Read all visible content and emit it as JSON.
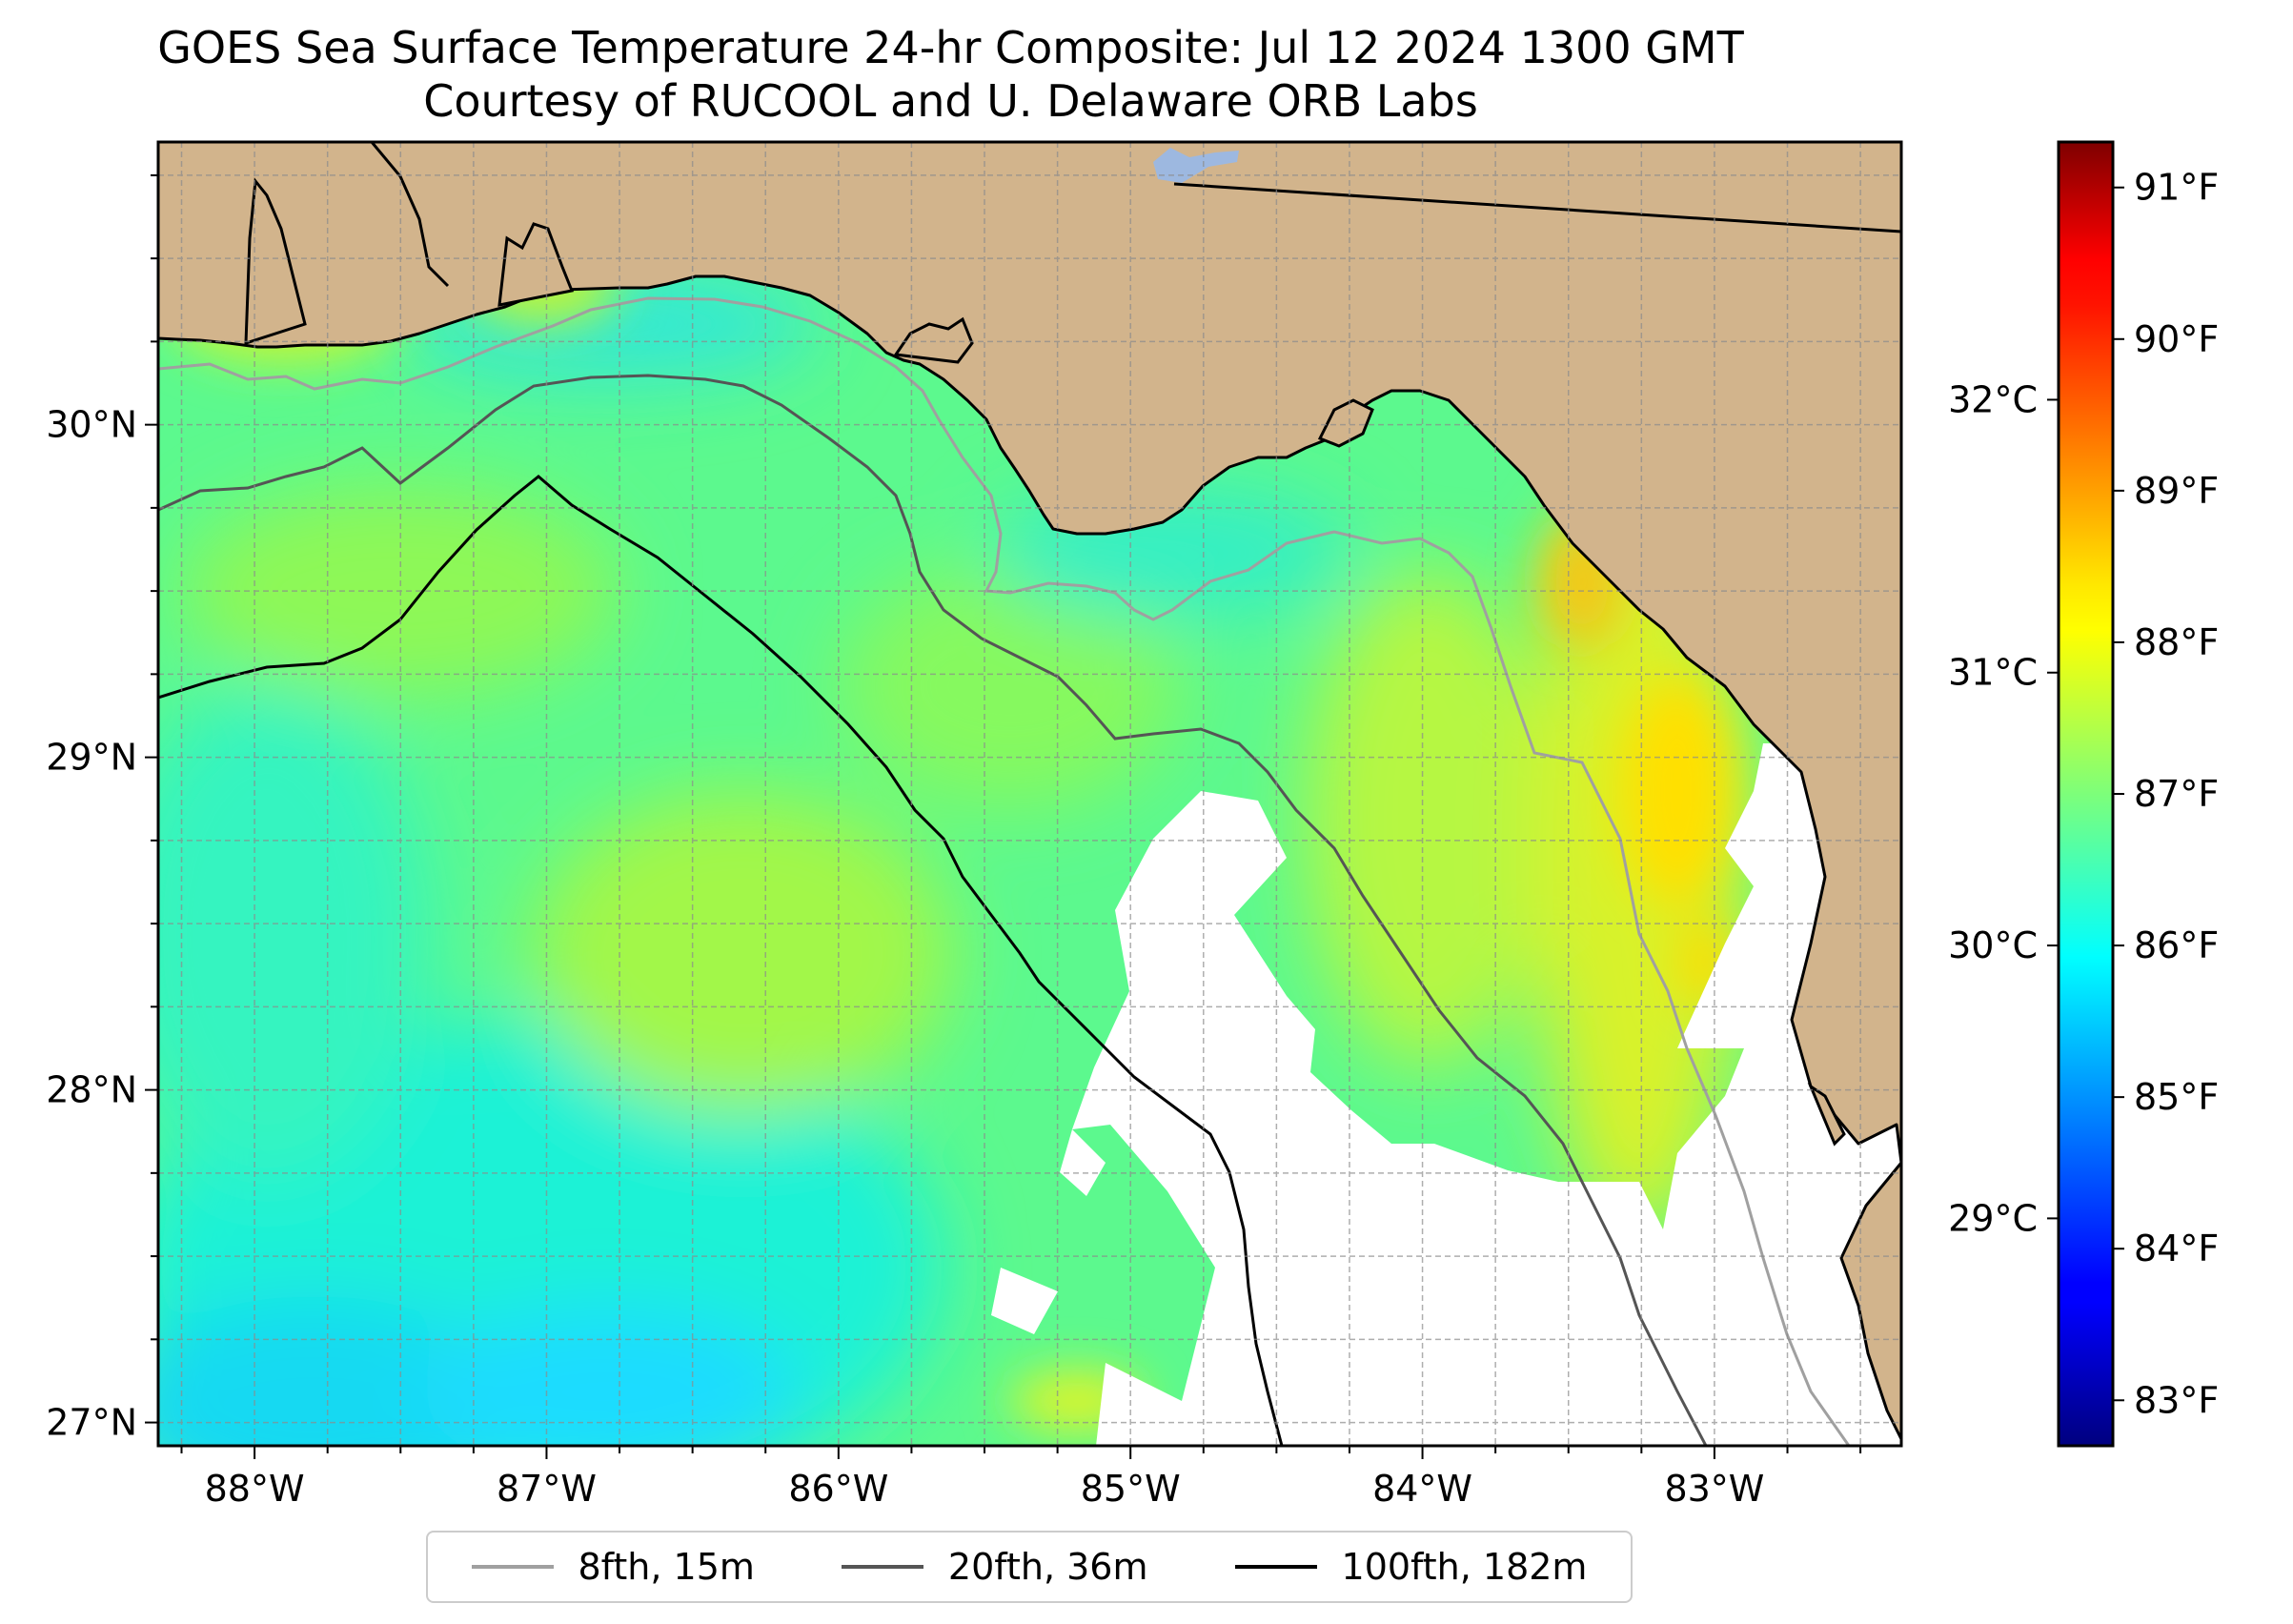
{
  "title": {
    "line1": "GOES Sea Surface Temperature 24-hr Composite: Jul 12 2024 1300 GMT",
    "line2": "Courtesy of RUCOOL and U. Delaware ORB Labs"
  },
  "map": {
    "lon_range": [
      -88.33,
      -82.36
    ],
    "lat_range": [
      26.93,
      30.85
    ],
    "lon_ticks": [
      {
        "value": -88,
        "label": "88°W"
      },
      {
        "value": -87,
        "label": "87°W"
      },
      {
        "value": -86,
        "label": "86°W"
      },
      {
        "value": -85,
        "label": "85°W"
      },
      {
        "value": -84,
        "label": "84°W"
      },
      {
        "value": -83,
        "label": "83°W"
      }
    ],
    "lat_ticks": [
      {
        "value": 30,
        "label": "30°N"
      },
      {
        "value": 29,
        "label": "29°N"
      },
      {
        "value": 28,
        "label": "28°N"
      },
      {
        "value": 27,
        "label": "27°N"
      }
    ],
    "gridlines": true,
    "colors": {
      "land": "#d2b48c",
      "water_nodata": "#ffffff",
      "lake": "#9db8e0",
      "coast": "#000000"
    }
  },
  "colorbar": {
    "colormap": "jet",
    "range_f": [
      82.7,
      91.3
    ],
    "fahrenheit_ticks": [
      {
        "value": 83,
        "label": "83°F"
      },
      {
        "value": 84,
        "label": "84°F"
      },
      {
        "value": 85,
        "label": "85°F"
      },
      {
        "value": 86,
        "label": "86°F"
      },
      {
        "value": 87,
        "label": "87°F"
      },
      {
        "value": 88,
        "label": "88°F"
      },
      {
        "value": 89,
        "label": "89°F"
      },
      {
        "value": 90,
        "label": "90°F"
      },
      {
        "value": 91,
        "label": "91°F"
      }
    ],
    "celsius_ticks": [
      {
        "value": 29,
        "label": "29°C"
      },
      {
        "value": 30,
        "label": "30°C"
      },
      {
        "value": 31,
        "label": "31°C"
      },
      {
        "value": 32,
        "label": "32°C"
      }
    ]
  },
  "legend": {
    "location": "bottom-center",
    "items": [
      {
        "label": "8fth, 15m",
        "color": "#a0a0a0"
      },
      {
        "label": "20fth, 36m",
        "color": "#555555"
      },
      {
        "label": "100fth, 182m",
        "color": "#000000"
      }
    ]
  }
}
